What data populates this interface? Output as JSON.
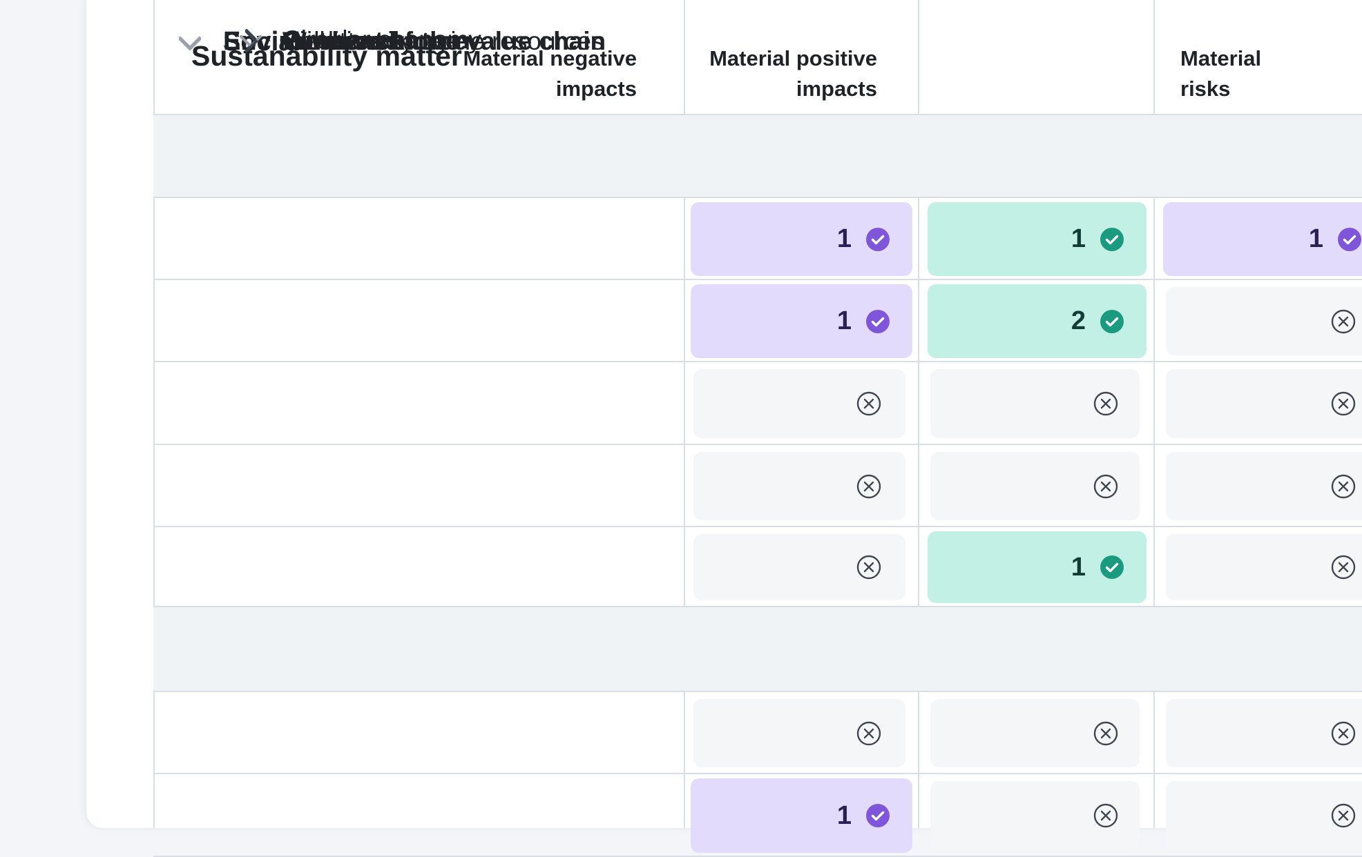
{
  "table": {
    "header": {
      "matter": "Sustanability matter",
      "col_negative": [
        "Material negative",
        "impacts"
      ],
      "col_positive": [
        "Material positive",
        "impacts"
      ],
      "col_risks": [
        "Material",
        "risks"
      ]
    },
    "rows": [
      {
        "kind": "group",
        "label": "Environment",
        "expanded": true
      },
      {
        "kind": "item",
        "label": "Climate change",
        "expanded": false,
        "bold": false,
        "cells": [
          {
            "state": "yes",
            "count": "1"
          },
          {
            "state": "yes",
            "count": "1"
          },
          {
            "state": "yes",
            "count": "1"
          }
        ]
      },
      {
        "kind": "item",
        "label": "Pollution",
        "expanded": false,
        "bold": false,
        "cells": [
          {
            "state": "yes",
            "count": "1"
          },
          {
            "state": "yes",
            "count": "2"
          },
          {
            "state": "no"
          }
        ]
      },
      {
        "kind": "item",
        "label": "Water and marine resources",
        "expanded": true,
        "bold": false,
        "cells": [
          {
            "state": "no"
          },
          {
            "state": "no"
          },
          {
            "state": "no"
          }
        ]
      },
      {
        "kind": "item",
        "label": "Biodiversity",
        "expanded": true,
        "bold": false,
        "cells": [
          {
            "state": "no"
          },
          {
            "state": "no"
          },
          {
            "state": "no"
          }
        ]
      },
      {
        "kind": "item",
        "label": "Circular economy",
        "expanded": false,
        "bold": false,
        "cells": [
          {
            "state": "no"
          },
          {
            "state": "yes",
            "count": "1"
          },
          {
            "state": "no"
          }
        ]
      },
      {
        "kind": "group",
        "label": "Social",
        "expanded": true
      },
      {
        "kind": "item",
        "label": "Own workforce",
        "expanded": true,
        "bold": true,
        "cells": [
          {
            "state": "no"
          },
          {
            "state": "no"
          },
          {
            "state": "no"
          }
        ]
      },
      {
        "kind": "item",
        "label": "Workers in the value chain",
        "expanded": false,
        "bold": true,
        "cells": [
          {
            "state": "yes",
            "count": "1"
          },
          {
            "state": "no"
          },
          {
            "state": "no"
          }
        ]
      }
    ]
  },
  "colors": {
    "negative_fill": "#e3dbfb",
    "negative_check": "#7f56d9",
    "positive_fill": "#c3f0e5",
    "positive_check": "#1a9a7e",
    "risks_fill": "#e3dbfb",
    "risks_check": "#7f56d9",
    "not_material_icon": "#3f4650"
  },
  "icons": {
    "expand": "chevron-down-icon",
    "collapse": "chevron-right-icon",
    "material": "check-circle-icon",
    "not_material": "x-circle-icon"
  }
}
